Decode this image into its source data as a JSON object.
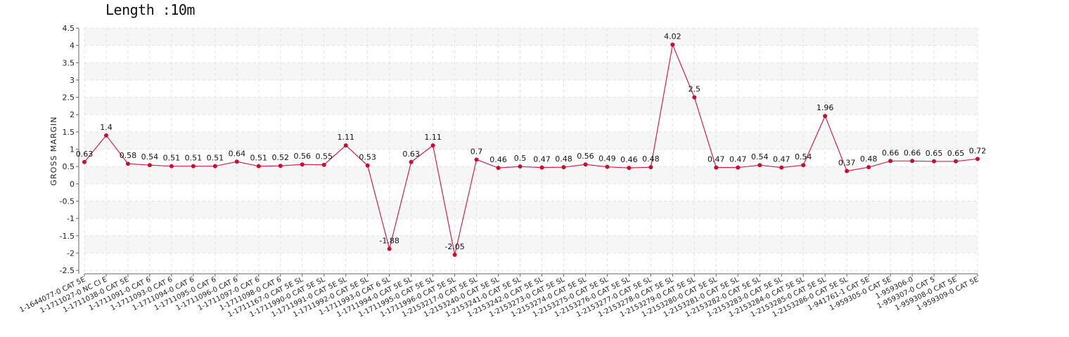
{
  "chart_data": {
    "type": "line",
    "title": "Length :10m",
    "ylabel": "GROSS MARGIN",
    "xlabel": "",
    "ylim": [
      -2.6,
      4.5
    ],
    "yticks": [
      -2.5,
      -2,
      -1.5,
      -1,
      -0.5,
      0,
      0.5,
      1,
      1.5,
      2,
      2.5,
      3,
      3.5,
      4,
      4.5
    ],
    "grid": true,
    "categories": [
      "1-1644077-0 CAT 5E",
      "1-1711027-0 NC CI E",
      "1-1711038-0 CAT 5E",
      "1-1711091-0 CAT 6",
      "1-1711093-0 CAT 6",
      "1-1711094-0 CAT 6",
      "1-1711095-0 CAT 6",
      "1-1711096-0 CAT 6",
      "1-1711097-0 CAT 6",
      "1-1711098-0 CAT 6",
      "1-1711167-0 CAT 5E SL",
      "1-1711990-0 CAT 5E SL",
      "1-1711991-0 CAT 5E SL",
      "1-1711992-0 CAT 5E SL",
      "1-1711993-0 CAT 6 SL",
      "1-1711994-0 CAT 5E SL",
      "1-1711995-0 CAT 5E SL",
      "1-1711996-0 CAT 5E SL",
      "1-2153217-0 CAT 5E SL",
      "1-2153240-0 CAT 5E SL",
      "1-2153241-0 CAT 5E SL",
      "1-2153242-0 CAT 5E SL",
      "1-2153273-0 CAT 5E SL",
      "1-2153274-0 CAT 5E SL",
      "1-2153275-0 CAT 5E SL",
      "1-2153276-0 CAT 5E SL",
      "1-2153277-0 CAT 5E SL",
      "1-2153278-0 CAT 5E SL",
      "1-2153279-0 CAT 5E SL",
      "1-2153280-0 CAT 5E SL",
      "1-2153281-0 CAT 5E SL",
      "1-2153282-0 CAT 5E SL",
      "1-2153283-0 CAT 5E SL",
      "1-2153284-0 CAT 5E SL",
      "1-2153285-0 CAT 5E SL",
      "1-2153286-0 CAT 5E SL",
      "1-941761-1 CAT 5E",
      "1-959305-0 CAT 5E",
      "1-959306-0",
      "1-959307-0 CAT 5",
      "1-959308-0 CAT 5E",
      "1-959309-0 CAT 5E"
    ],
    "series": [
      {
        "values": [
          0.63,
          1.4,
          0.58,
          0.54,
          0.51,
          0.51,
          0.51,
          0.64,
          0.51,
          0.52,
          0.56,
          0.55,
          1.11,
          0.53,
          -1.88,
          0.63,
          1.11,
          -2.05,
          0.7,
          0.46,
          0.5,
          0.47,
          0.48,
          0.56,
          0.49,
          0.46,
          0.48,
          4.02,
          2.5,
          0.47,
          0.47,
          0.54,
          0.47,
          0.54,
          1.96,
          0.37,
          0.48,
          0.66,
          0.66,
          0.65,
          0.65,
          0.72
        ],
        "labels": [
          "0.63",
          "1.4",
          "0.58",
          "0.54",
          "0.51",
          "0.51",
          "0.51",
          "0.64",
          "0.51",
          "0.52",
          "0.56",
          "0.55",
          "1.11",
          "0.53",
          "-1.88",
          "0.63",
          "1.11",
          "-2.05",
          "0.7",
          "0.46",
          "0.5",
          "0.47",
          "0.48",
          "0.56",
          "0.49",
          "0.46",
          "0.48",
          "4.02",
          "2.5",
          "0.47",
          "0.47",
          "0.54",
          "0.47",
          "0.54",
          "1.96",
          "0.37",
          "0.48",
          "0.66",
          "0.66",
          "0.65",
          "0.65",
          "0.72"
        ]
      }
    ],
    "colors": {
      "line": "#d6204a",
      "point": "#c8102e",
      "grid": "#e2e2e2",
      "band": "#f6f6f6",
      "axis": "#666666"
    }
  }
}
